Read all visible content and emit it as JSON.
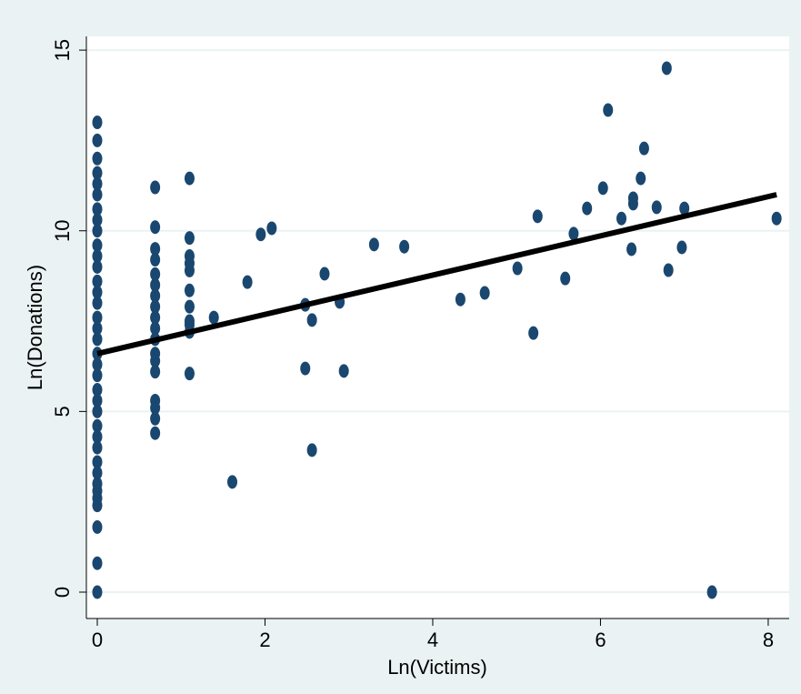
{
  "chart_data": {
    "type": "scatter",
    "xlabel": "Ln(Victims)",
    "ylabel": "Ln(Donations)",
    "xlim": [
      -0.13,
      8.25
    ],
    "ylim": [
      -0.73,
      15.38
    ],
    "xticks": [
      0,
      2,
      4,
      6,
      8
    ],
    "yticks": [
      0,
      5,
      10,
      15
    ],
    "grid": true,
    "series": [
      {
        "type": "scatter",
        "color": "#1a476f",
        "x": [
          0,
          0,
          0,
          0,
          0,
          0,
          0,
          0,
          0,
          0,
          0,
          0,
          0,
          0,
          0,
          0,
          0,
          0,
          0,
          0,
          0,
          0,
          0,
          0,
          0,
          0,
          0,
          0,
          0,
          0,
          0,
          0,
          0,
          0,
          0,
          0,
          0.69,
          0.69,
          0.69,
          0.69,
          0.69,
          0.69,
          0.69,
          0.69,
          0.69,
          0.69,
          0.69,
          0.69,
          0.69,
          0.69,
          0.69,
          0.69,
          0.69,
          0.69,
          1.1,
          1.1,
          1.1,
          1.1,
          1.1,
          1.1,
          1.1,
          1.1,
          1.1,
          1.1,
          1.1,
          1.39,
          1.61,
          1.79,
          1.95,
          2.08,
          2.48,
          2.48,
          2.56,
          2.56,
          2.71,
          2.89,
          2.94,
          3.3,
          3.66,
          4.33,
          4.62,
          5.01,
          5.2,
          5.25,
          5.58,
          5.68,
          5.84,
          6.03,
          6.09,
          6.25,
          6.37,
          6.39,
          6.39,
          6.48,
          6.52,
          6.67,
          6.79,
          6.81,
          6.97,
          7.0,
          7.33,
          8.1
        ],
        "values": [
          0,
          0.8,
          1.8,
          2.4,
          2.6,
          2.8,
          3.0,
          3.3,
          3.6,
          4.0,
          4.3,
          4.6,
          5.0,
          5.3,
          5.6,
          6.0,
          6.3,
          6.6,
          7.0,
          7.3,
          7.6,
          8.0,
          8.3,
          8.6,
          9.0,
          9.3,
          9.6,
          10.0,
          10.3,
          10.6,
          11.0,
          11.3,
          11.6,
          12.0,
          12.5,
          13.0,
          4.4,
          4.8,
          5.1,
          5.3,
          6.1,
          6.4,
          6.6,
          7.0,
          7.3,
          7.6,
          7.9,
          8.2,
          8.5,
          8.8,
          9.2,
          9.5,
          10.1,
          11.2,
          6.05,
          7.2,
          7.4,
          7.5,
          7.9,
          8.35,
          8.9,
          9.1,
          9.3,
          9.8,
          11.45,
          7.6,
          3.05,
          8.58,
          9.9,
          10.07,
          7.95,
          6.19,
          7.53,
          3.93,
          8.81,
          8.03,
          6.12,
          9.62,
          9.56,
          8.1,
          8.28,
          8.96,
          7.17,
          10.4,
          8.68,
          9.92,
          10.62,
          11.18,
          13.34,
          10.34,
          9.49,
          10.9,
          10.75,
          11.45,
          12.28,
          10.65,
          14.5,
          8.91,
          9.54,
          10.62,
          0,
          10.34
        ]
      },
      {
        "type": "line",
        "color": "#000000",
        "x": [
          0,
          8.1
        ],
        "values": [
          6.6,
          11.0
        ]
      }
    ]
  }
}
